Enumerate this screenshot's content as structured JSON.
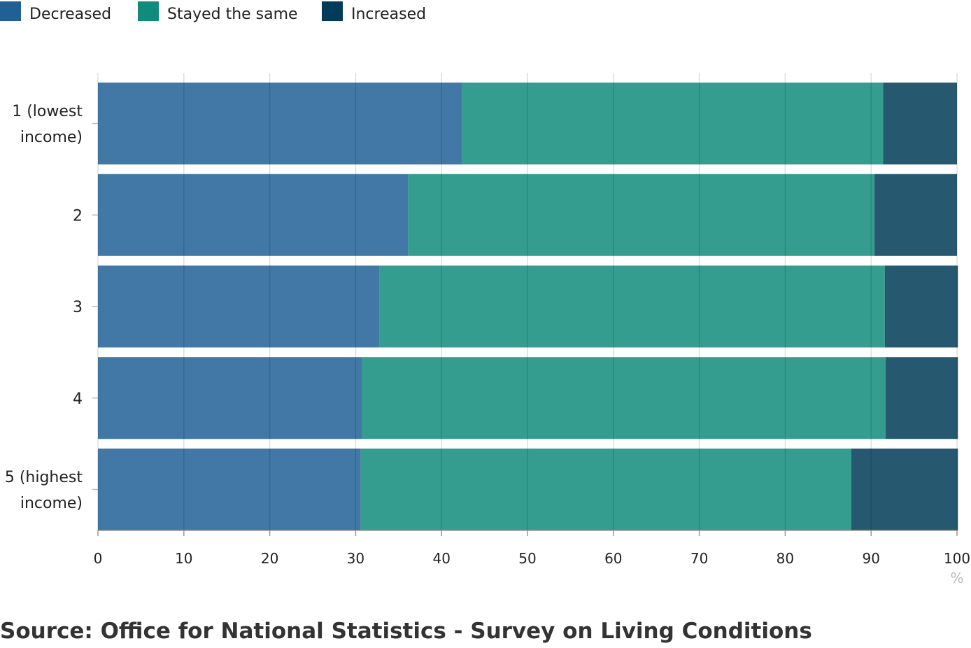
{
  "chart_data": {
    "type": "bar",
    "orientation": "horizontal",
    "stacked": true,
    "categories": [
      [
        "1 (lowest",
        "income)"
      ],
      [
        "2"
      ],
      [
        "3"
      ],
      [
        "4"
      ],
      [
        "5 (highest",
        "income)"
      ]
    ],
    "series": [
      {
        "name": "Decreased",
        "color": "#206095",
        "values": [
          42.4,
          36.1,
          32.8,
          30.7,
          30.6
        ]
      },
      {
        "name": "Stayed the same",
        "color": "#118c7b",
        "values": [
          49.0,
          54.3,
          58.8,
          61.0,
          57.1
        ]
      },
      {
        "name": "Increased",
        "color": "#003c57",
        "values": [
          8.6,
          9.6,
          8.5,
          8.4,
          12.4
        ]
      }
    ],
    "xlim": [
      0,
      100
    ],
    "xticks": [
      "0",
      "10",
      "20",
      "30",
      "40",
      "50",
      "60",
      "70",
      "80",
      "90",
      "100"
    ],
    "xunit": "%",
    "legend_position": "top-left",
    "grid": true
  },
  "footer": {
    "source": "Source: Office for National Statistics - Survey on Living Conditions"
  }
}
